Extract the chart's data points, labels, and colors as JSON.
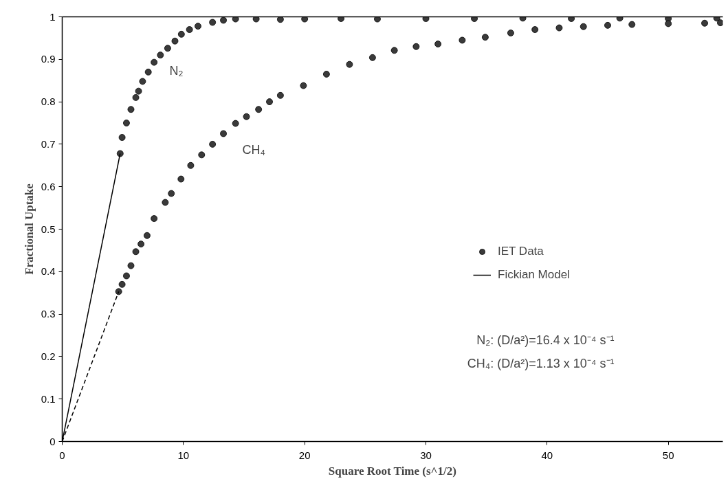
{
  "chart_data": {
    "type": "scatter",
    "xlabel": "Square Root Time (s^1/2)",
    "ylabel": "Fractional Uptake",
    "xlim": [
      0,
      54.5
    ],
    "ylim": [
      0,
      1
    ],
    "xticks": [
      0,
      10,
      20,
      30,
      40,
      50
    ],
    "yticks": [
      0,
      0.1,
      0.2,
      0.3,
      0.4,
      0.5,
      0.6,
      0.7,
      0.8,
      0.9,
      1
    ],
    "grid": false,
    "legend": "right",
    "series": [
      {
        "name": "IET Data",
        "marker": "circle",
        "color": "#3a3a3a",
        "x": [
          4.78,
          4.94,
          5.3,
          5.67,
          6.07,
          6.3,
          6.63,
          7.1,
          7.58,
          8.1,
          8.7,
          9.3,
          9.83,
          10.5,
          11.2,
          12.4,
          13.3,
          14.3,
          16,
          18,
          20,
          23,
          26,
          30,
          34,
          38,
          42,
          46,
          50,
          54
        ],
        "values": [
          0.678,
          0.716,
          0.75,
          0.782,
          0.81,
          0.825,
          0.848,
          0.87,
          0.893,
          0.91,
          0.926,
          0.943,
          0.959,
          0.97,
          0.978,
          0.987,
          0.992,
          0.995,
          0.995,
          0.994,
          0.995,
          0.996,
          0.995,
          0.996,
          0.996,
          0.997,
          0.996,
          0.997,
          0.996,
          0.997
        ]
      },
      {
        "marker": "circle",
        "color": "#3a3a3a",
        "x": [
          4.66,
          4.94,
          5.3,
          5.67,
          6.07,
          6.5,
          7.0,
          7.58,
          8.5,
          9.0,
          9.8,
          10.6,
          11.5,
          12.4,
          13.3,
          14.3,
          15.2,
          16.2,
          17.1,
          18.0,
          19.9,
          21.8,
          23.7,
          25.6,
          27.4,
          29.2,
          31.0,
          33.0,
          34.9,
          37.0,
          39.0,
          41.0,
          43.0,
          45.0,
          47.0,
          50.0,
          53.0,
          54.3
        ],
        "values": [
          0.353,
          0.37,
          0.39,
          0.414,
          0.447,
          0.465,
          0.485,
          0.525,
          0.563,
          0.584,
          0.618,
          0.65,
          0.675,
          0.7,
          0.725,
          0.749,
          0.765,
          0.782,
          0.8,
          0.815,
          0.838,
          0.865,
          0.888,
          0.904,
          0.921,
          0.93,
          0.936,
          0.945,
          0.952,
          0.962,
          0.97,
          0.974,
          0.977,
          0.98,
          0.982,
          0.984,
          0.985,
          0.986
        ]
      },
      {
        "name": "Fickian Model",
        "type": "line",
        "color": "#000000",
        "line_style": "solid",
        "marker": "none",
        "x": [
          0,
          4.78
        ],
        "values": [
          0,
          0.678
        ]
      },
      {
        "type": "line",
        "color": "#000000",
        "line_style": "dashed",
        "marker": "none",
        "x": [
          0,
          4.66
        ],
        "values": [
          0,
          0.353
        ]
      }
    ],
    "annotations": [
      "N₂",
      "CH₄",
      "N₂:  (D/a²)=16.4 x 10⁻⁴ s⁻¹",
      "CH₄:  (D/a²)=1.13 x 10⁻⁴ s⁻¹"
    ]
  }
}
